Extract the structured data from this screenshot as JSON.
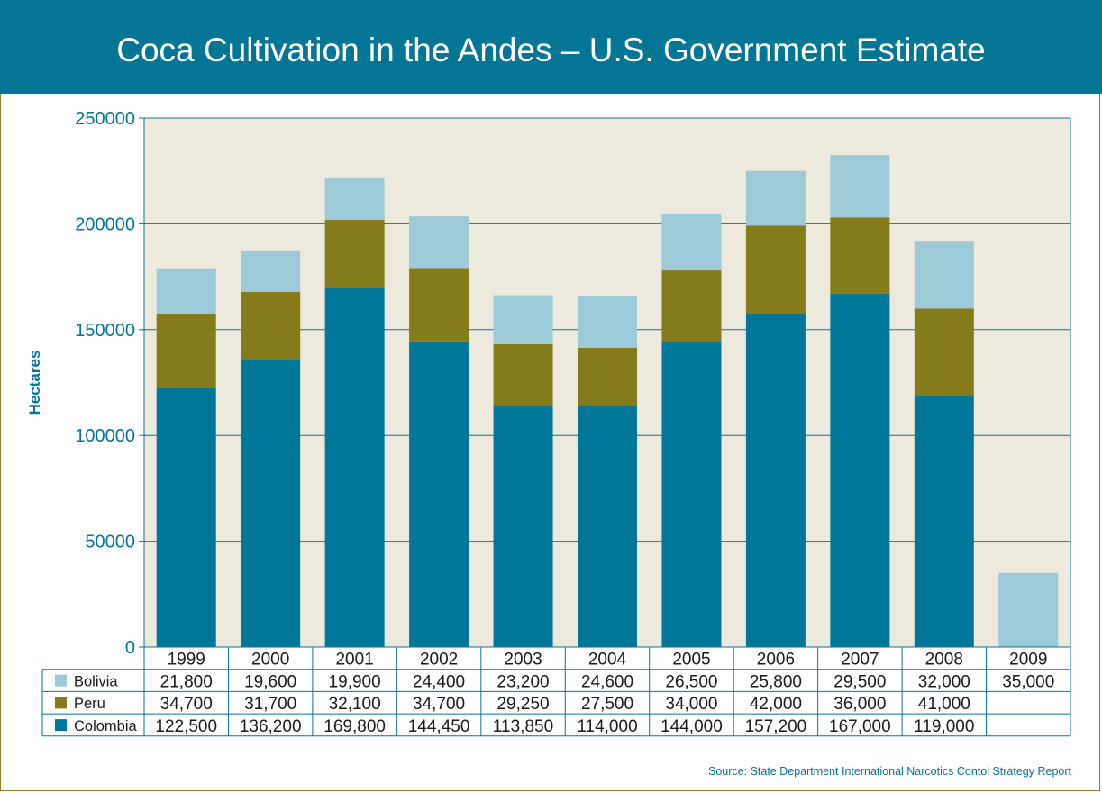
{
  "title": "Coca Cultivation in the Andes – U.S. Government Estimate",
  "source": "Source: State Department International Narcotics Contol Strategy Report",
  "colors": {
    "header": "#037595",
    "plot_bg": "#ede9dc",
    "axis": "#037595",
    "text": "#037595",
    "Colombia": "#007698",
    "Peru": "#857b1a",
    "Bolivia": "#9ccad8"
  },
  "chart_data": {
    "type": "bar",
    "stacked": true,
    "title": "Coca Cultivation in the Andes – U.S. Government Estimate",
    "xlabel": "",
    "ylabel": "Hectares",
    "ylim": [
      0,
      250000
    ],
    "yticks": [
      "0",
      "50000",
      "100000",
      "150000",
      "200000",
      "250000"
    ],
    "grid": true,
    "categories": [
      "1999",
      "2000",
      "2001",
      "2002",
      "2003",
      "2004",
      "2005",
      "2006",
      "2007",
      "2008",
      "2009"
    ],
    "series": [
      {
        "name": "Colombia",
        "values": [
          122500,
          136200,
          169800,
          144450,
          113850,
          114000,
          144000,
          157200,
          167000,
          119000,
          null
        ],
        "labels": [
          "122,500",
          "136,200",
          "169,800",
          "144,450",
          "113,850",
          "114,000",
          "144,000",
          "157,200",
          "167,000",
          "119,000",
          ""
        ]
      },
      {
        "name": "Peru",
        "values": [
          34700,
          31700,
          32100,
          34700,
          29250,
          27500,
          34000,
          42000,
          36000,
          41000,
          null
        ],
        "labels": [
          "34,700",
          "31,700",
          "32,100",
          "34,700",
          "29,250",
          "27,500",
          "34,000",
          "42,000",
          "36,000",
          "41,000",
          ""
        ]
      },
      {
        "name": "Bolivia",
        "values": [
          21800,
          19600,
          19900,
          24400,
          23200,
          24600,
          26500,
          25800,
          29500,
          32000,
          35000
        ],
        "labels": [
          "21,800",
          "19,600",
          "19,900",
          "24,400",
          "23,200",
          "24,600",
          "26,500",
          "25,800",
          "29,500",
          "32,000",
          "35,000"
        ]
      }
    ],
    "table_row_order": [
      "Bolivia",
      "Peru",
      "Colombia"
    ]
  }
}
